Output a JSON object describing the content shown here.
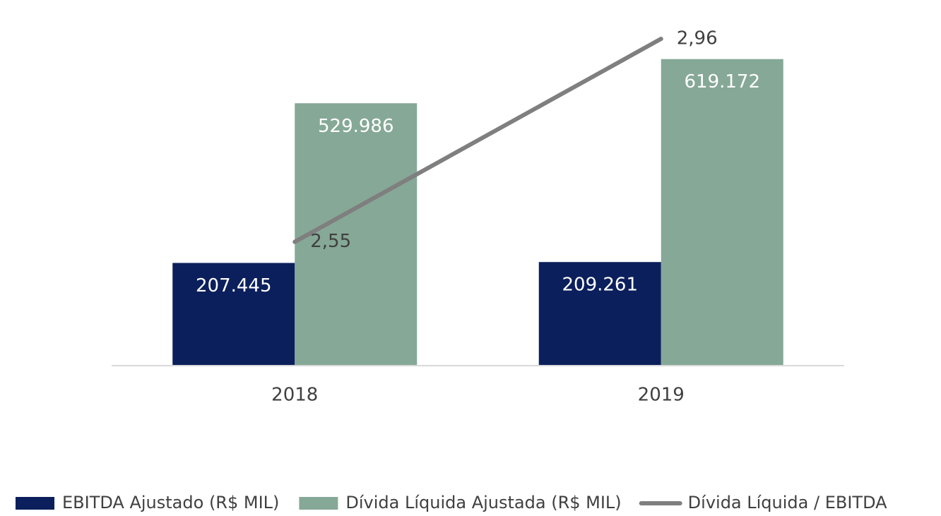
{
  "chart_data": {
    "type": "bar_line",
    "categories": [
      "2018",
      "2019"
    ],
    "series": [
      {
        "name": "EBITDA Ajustado (R$ MIL)",
        "type": "bar",
        "color": "#0b1f5c",
        "values": [
          207445,
          209261
        ],
        "value_labels": [
          "207.445",
          "209.261"
        ]
      },
      {
        "name": "Dívida Líquida Ajustada (R$ MIL)",
        "type": "bar",
        "color": "#86a897",
        "values": [
          529986,
          619172
        ],
        "value_labels": [
          "529.986",
          "619.172"
        ]
      },
      {
        "name": "Dívida Líquida / EBITDA",
        "type": "line",
        "axis": "y2",
        "color": "#7f7f7f",
        "values": [
          2.55,
          2.96
        ],
        "value_labels": [
          "2,55",
          "2,96"
        ]
      }
    ],
    "ylim": [
      0,
      700000
    ],
    "y2lim": [
      2.3,
      3.0
    ],
    "legend": "bottom"
  }
}
